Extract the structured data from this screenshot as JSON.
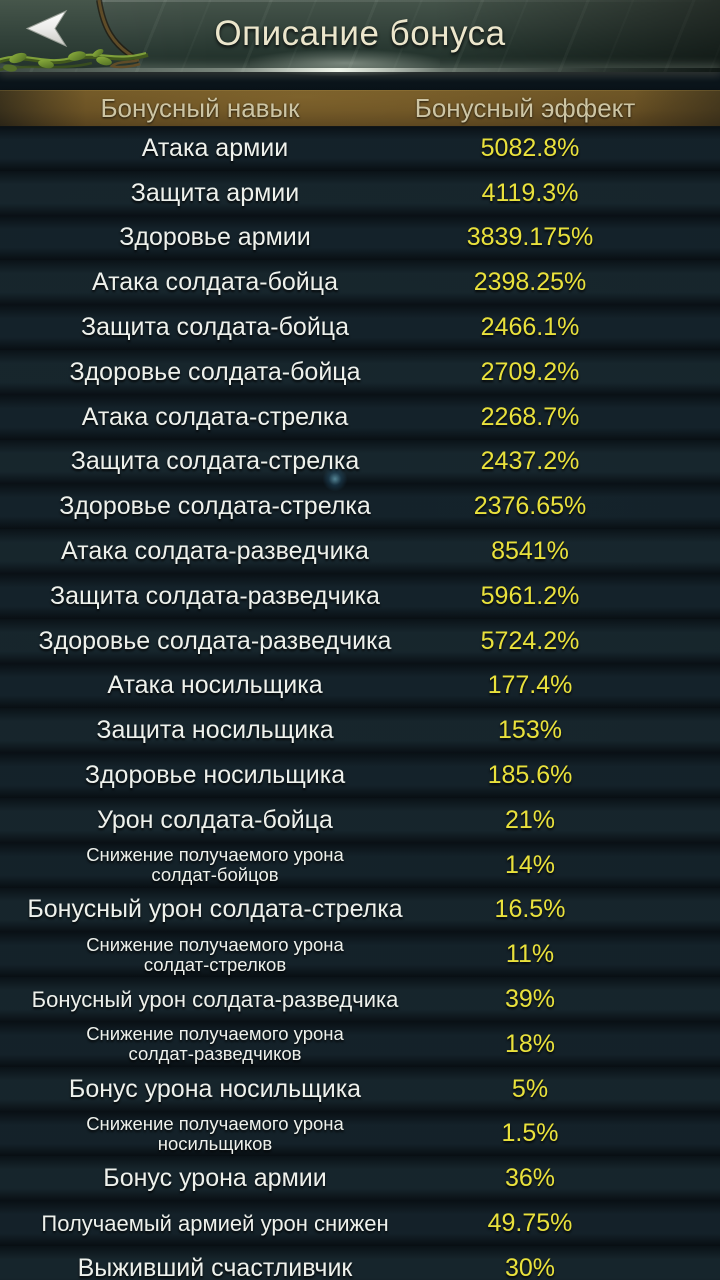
{
  "header": {
    "title": "Описание бонуса",
    "back_icon": "back-arrow"
  },
  "table": {
    "columns": [
      "Бонусный навык",
      "Бонусный эффект"
    ],
    "rows": [
      {
        "skill": "Атака армии",
        "effect": "5082.8%",
        "size": "n"
      },
      {
        "skill": "Защита армии",
        "effect": "4119.3%",
        "size": "n"
      },
      {
        "skill": "Здоровье армии",
        "effect": "3839.175%",
        "size": "n"
      },
      {
        "skill": "Атака солдата-бойца",
        "effect": "2398.25%",
        "size": "n"
      },
      {
        "skill": "Защита солдата-бойца",
        "effect": "2466.1%",
        "size": "n"
      },
      {
        "skill": "Здоровье солдата-бойца",
        "effect": "2709.2%",
        "size": "n"
      },
      {
        "skill": "Атака солдата-стрелка",
        "effect": "2268.7%",
        "size": "n"
      },
      {
        "skill": "Защита солдата-стрелка",
        "effect": "2437.2%",
        "size": "n"
      },
      {
        "skill": "Здоровье солдата-стрелка",
        "effect": "2376.65%",
        "size": "n"
      },
      {
        "skill": "Атака солдата-разведчика",
        "effect": "8541%",
        "size": "n"
      },
      {
        "skill": "Защита солдата-разведчика",
        "effect": "5961.2%",
        "size": "n"
      },
      {
        "skill": "Здоровье солдата-разведчика",
        "effect": "5724.2%",
        "size": "n"
      },
      {
        "skill": "Атака носильщика",
        "effect": "177.4%",
        "size": "n"
      },
      {
        "skill": "Защита носильщика",
        "effect": "153%",
        "size": "n"
      },
      {
        "skill": "Здоровье носильщика",
        "effect": "185.6%",
        "size": "n"
      },
      {
        "skill": "Урон солдата-бойца",
        "effect": "21%",
        "size": "n"
      },
      {
        "skill": "Снижение получаемого урона\nсолдат-бойцов",
        "effect": "14%",
        "size": "s"
      },
      {
        "skill": "Бонусный урон солдата-стрелка",
        "effect": "16.5%",
        "size": "n"
      },
      {
        "skill": "Снижение получаемого урона\nсолдат-стрелков",
        "effect": "11%",
        "size": "s"
      },
      {
        "skill": "Бонусный урон солдата-разведчика",
        "effect": "39%",
        "size": "m"
      },
      {
        "skill": "Снижение получаемого урона\nсолдат-разведчиков",
        "effect": "18%",
        "size": "s"
      },
      {
        "skill": "Бонус урона носильщика",
        "effect": "5%",
        "size": "n"
      },
      {
        "skill": "Снижение получаемого урона\nносильщиков",
        "effect": "1.5%",
        "size": "s"
      },
      {
        "skill": "Бонус урона армии",
        "effect": "36%",
        "size": "n"
      },
      {
        "skill": "Получаемый армией урон снижен",
        "effect": "49.75%",
        "size": "m"
      },
      {
        "skill": "Выживший счастливчик",
        "effect": "30%",
        "size": "n"
      }
    ]
  },
  "colors": {
    "effect_value": "#e9e13c",
    "skill_text": "#eef1ec",
    "title_text": "#ece6cc",
    "table_header_bg": "#634c22",
    "table_header_text": "#cdc5a4",
    "top_bar_green": "#37463e"
  }
}
